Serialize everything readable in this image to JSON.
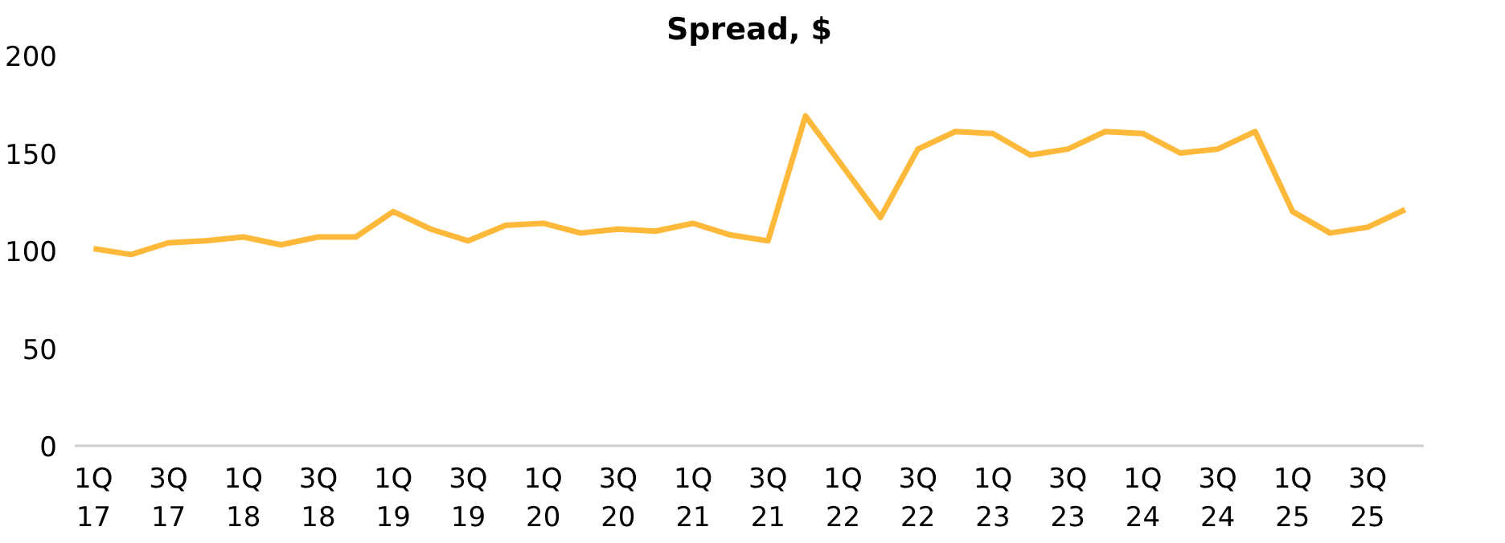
{
  "chart_data": {
    "type": "line",
    "title": "Spread, $",
    "categories": [
      "1Q\n17",
      null,
      "3Q\n17",
      null,
      "1Q\n18",
      null,
      "3Q\n18",
      null,
      "1Q\n19",
      null,
      "3Q\n19",
      null,
      "1Q\n20",
      null,
      "3Q\n20",
      null,
      "1Q\n21",
      null,
      "3Q\n21",
      null,
      "1Q\n22",
      null,
      "3Q\n22",
      null,
      "1Q\n23",
      null,
      "3Q\n23",
      null,
      "1Q\n24",
      null,
      "3Q\n24",
      null,
      "1Q\n25",
      null,
      "3Q\n25",
      null
    ],
    "series": [
      {
        "color": "#ffb93a",
        "values": [
          101,
          98,
          104,
          105,
          107,
          103,
          107,
          107,
          120,
          111,
          105,
          113,
          114,
          109,
          111,
          110,
          114,
          108,
          105,
          169,
          143,
          117,
          152,
          161,
          160,
          149,
          152,
          161,
          160,
          150,
          152,
          161,
          120,
          109,
          112,
          121
        ]
      }
    ],
    "ylim": [
      0,
      200
    ],
    "yticks": [
      0,
      50,
      100,
      150,
      200
    ],
    "grid": false,
    "marker": "none",
    "line_style": "solid"
  }
}
